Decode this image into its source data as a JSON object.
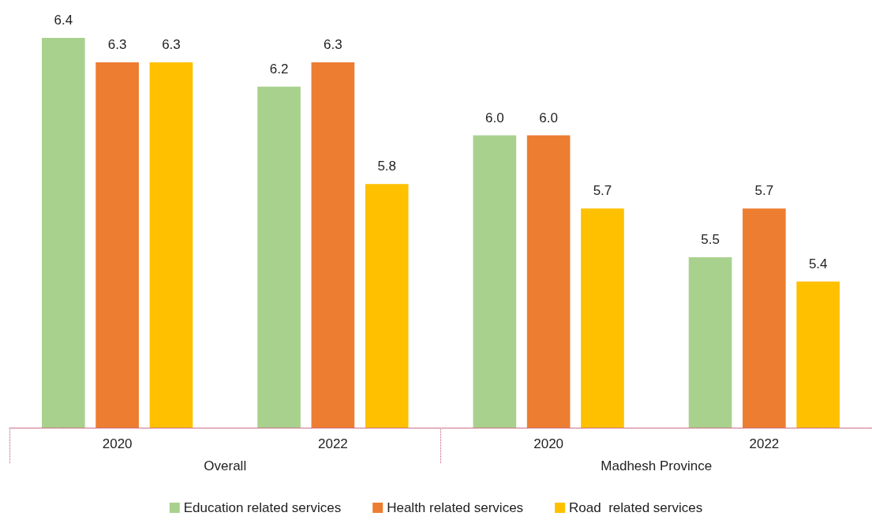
{
  "chart_data": {
    "type": "bar",
    "categories": [
      "2020",
      "2022",
      "2020",
      "2022"
    ],
    "annotations": [
      "Overall",
      "Madhesh Province"
    ],
    "ylim": [
      4.8,
      6.4
    ],
    "series": [
      {
        "name": "Education related services",
        "color": "#a9d18e",
        "values": [
          6.4,
          6.2,
          6.0,
          5.5
        ],
        "value_labels": [
          "6.4",
          "6.2",
          "6.0",
          "5.5"
        ]
      },
      {
        "name": "Health related services",
        "color": "#ed7d31",
        "values": [
          6.3,
          6.3,
          6.0,
          5.7
        ],
        "value_labels": [
          "6.3",
          "6.3",
          "6.0",
          "5.7"
        ]
      },
      {
        "name": "Road  related services",
        "color": "#ffc000",
        "values": [
          6.3,
          5.8,
          5.7,
          5.4
        ],
        "value_labels": [
          "6.3",
          "5.8",
          "5.7",
          "5.4"
        ]
      }
    ],
    "legend": "bottom",
    "grid": false
  }
}
